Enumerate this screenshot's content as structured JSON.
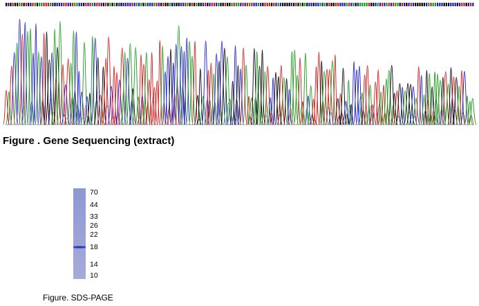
{
  "figures": [
    {
      "caption": "Figure . Gene Sequencing (extract)"
    },
    {
      "caption": "Figure. SDS-PAGE",
      "markers": [
        "70",
        "44",
        "33",
        "26",
        "22",
        "18",
        "14",
        "10"
      ]
    }
  ]
}
